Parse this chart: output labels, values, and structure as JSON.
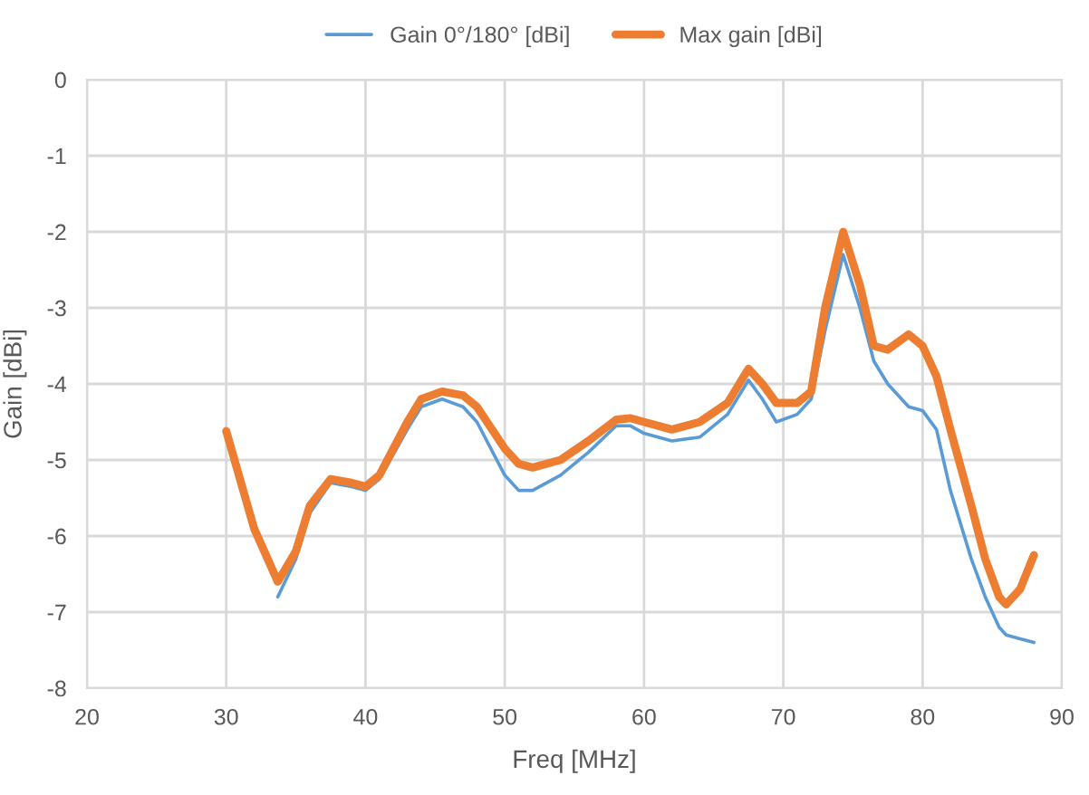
{
  "chart_data": {
    "type": "line",
    "xlabel": "Freq [MHz]",
    "ylabel": "Gain [dBi]",
    "xlim": [
      20,
      90
    ],
    "xticks": [
      20,
      30,
      40,
      50,
      60,
      70,
      80,
      90
    ],
    "ylim": [
      -8,
      0
    ],
    "yticks": [
      -8,
      -7,
      -6,
      -5,
      -4,
      -3,
      -2,
      -1,
      0
    ],
    "grid": true,
    "legend": "top",
    "marker": "none",
    "line_style": "solid",
    "series": [
      {
        "name": "Gain 0°/180° [dBi]",
        "color": "#5b9bd5",
        "x": [
          33.7,
          35,
          36,
          37.5,
          39,
          40,
          41,
          43,
          44,
          45.5,
          47,
          48,
          50,
          51,
          52,
          54,
          56,
          58,
          59,
          60,
          62,
          64,
          66,
          67.5,
          68.5,
          69.5,
          71,
          72,
          73,
          74.3,
          75.5,
          76.5,
          77.5,
          79,
          80,
          81,
          82,
          83.5,
          84.5,
          85.5,
          86,
          87,
          88
        ],
        "values": [
          -6.8,
          -6.3,
          -5.7,
          -5.3,
          -5.35,
          -5.4,
          -5.25,
          -4.6,
          -4.3,
          -4.2,
          -4.3,
          -4.5,
          -5.2,
          -5.4,
          -5.4,
          -5.2,
          -4.9,
          -4.55,
          -4.55,
          -4.65,
          -4.75,
          -4.7,
          -4.4,
          -3.95,
          -4.2,
          -4.5,
          -4.4,
          -4.2,
          -3.3,
          -2.3,
          -3.0,
          -3.7,
          -4.0,
          -4.3,
          -4.35,
          -4.6,
          -5.4,
          -6.3,
          -6.8,
          -7.2,
          -7.3,
          -7.35,
          -7.4
        ]
      },
      {
        "name": "Max gain [dBi]",
        "color": "#ed7d31",
        "x": [
          30,
          32,
          33.7,
          35,
          36,
          37.5,
          39,
          40,
          41,
          43,
          44,
          45.5,
          47,
          48,
          50,
          51,
          52,
          54,
          56,
          58,
          59,
          60,
          62,
          64,
          66,
          67.5,
          68.5,
          69.5,
          71,
          72,
          73,
          74.3,
          75.5,
          76.5,
          77.5,
          79,
          80,
          81,
          82,
          83.5,
          84.5,
          85.5,
          86,
          87,
          88
        ],
        "values": [
          -4.62,
          -5.9,
          -6.6,
          -6.2,
          -5.6,
          -5.25,
          -5.3,
          -5.35,
          -5.2,
          -4.5,
          -4.2,
          -4.1,
          -4.15,
          -4.3,
          -4.85,
          -5.05,
          -5.1,
          -5.0,
          -4.75,
          -4.47,
          -4.45,
          -4.5,
          -4.6,
          -4.5,
          -4.25,
          -3.8,
          -4.0,
          -4.25,
          -4.25,
          -4.1,
          -3.0,
          -2.0,
          -2.7,
          -3.5,
          -3.55,
          -3.35,
          -3.5,
          -3.9,
          -4.6,
          -5.6,
          -6.3,
          -6.8,
          -6.9,
          -6.7,
          -6.25
        ]
      }
    ]
  }
}
